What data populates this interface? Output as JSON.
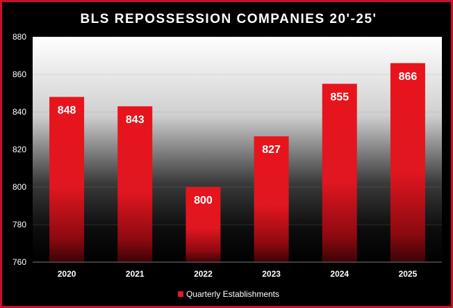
{
  "colors": {
    "background": "#000000",
    "border": "#c8102e",
    "bar": "#e21b24",
    "text": "#ffffff"
  },
  "chart_data": {
    "type": "bar",
    "title": "BLS REPOSSESSION COMPANIES 20'-25'",
    "categories": [
      "2020",
      "2021",
      "2022",
      "2023",
      "2024",
      "2025"
    ],
    "series": [
      {
        "name": "Quarterly Establishments",
        "values": [
          848,
          843,
          800,
          827,
          855,
          866
        ]
      }
    ],
    "data_labels": [
      "848",
      "843",
      "800",
      "827",
      "855",
      "866"
    ],
    "ylim": [
      760,
      880
    ],
    "yticks": [
      "760",
      "780",
      "800",
      "820",
      "840",
      "860",
      "880"
    ],
    "grid": true,
    "legend": "bottom"
  }
}
